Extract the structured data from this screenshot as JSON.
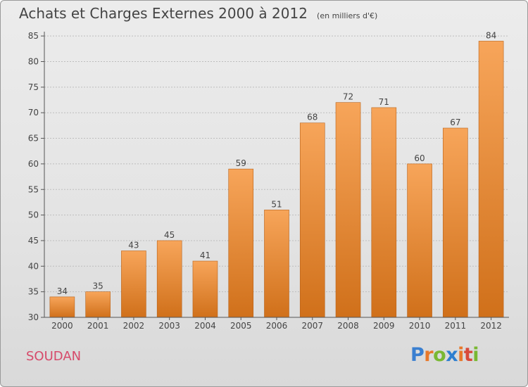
{
  "title": "Achats et Charges Externes 2000 à 2012",
  "unit": "(en milliers d'€)",
  "commune": "SOUDAN",
  "logo": {
    "text": "Proxiti",
    "letters": [
      "P",
      "r",
      "o",
      "x",
      "i",
      "t",
      "i"
    ],
    "colors": [
      "#3a7fd0",
      "#e8782a",
      "#79b832",
      "#2e7fd0",
      "#e8782a",
      "#d84a3a",
      "#79b832"
    ]
  },
  "colors": {
    "bar_top": "#f7a55a",
    "bar_bottom": "#d0701a",
    "axis": "#555555",
    "grid": "#bdbdbd",
    "text": "#444444"
  },
  "chart_data": {
    "type": "bar",
    "categories": [
      "2000",
      "2001",
      "2002",
      "2003",
      "2004",
      "2005",
      "2006",
      "2007",
      "2008",
      "2009",
      "2010",
      "2011",
      "2012"
    ],
    "values": [
      34,
      35,
      43,
      45,
      41,
      59,
      51,
      68,
      72,
      71,
      60,
      67,
      84
    ],
    "yticks": [
      30,
      35,
      40,
      45,
      50,
      55,
      60,
      65,
      70,
      75,
      80,
      85
    ],
    "ylim": [
      30,
      85
    ],
    "grid": true,
    "data_labels": true
  }
}
